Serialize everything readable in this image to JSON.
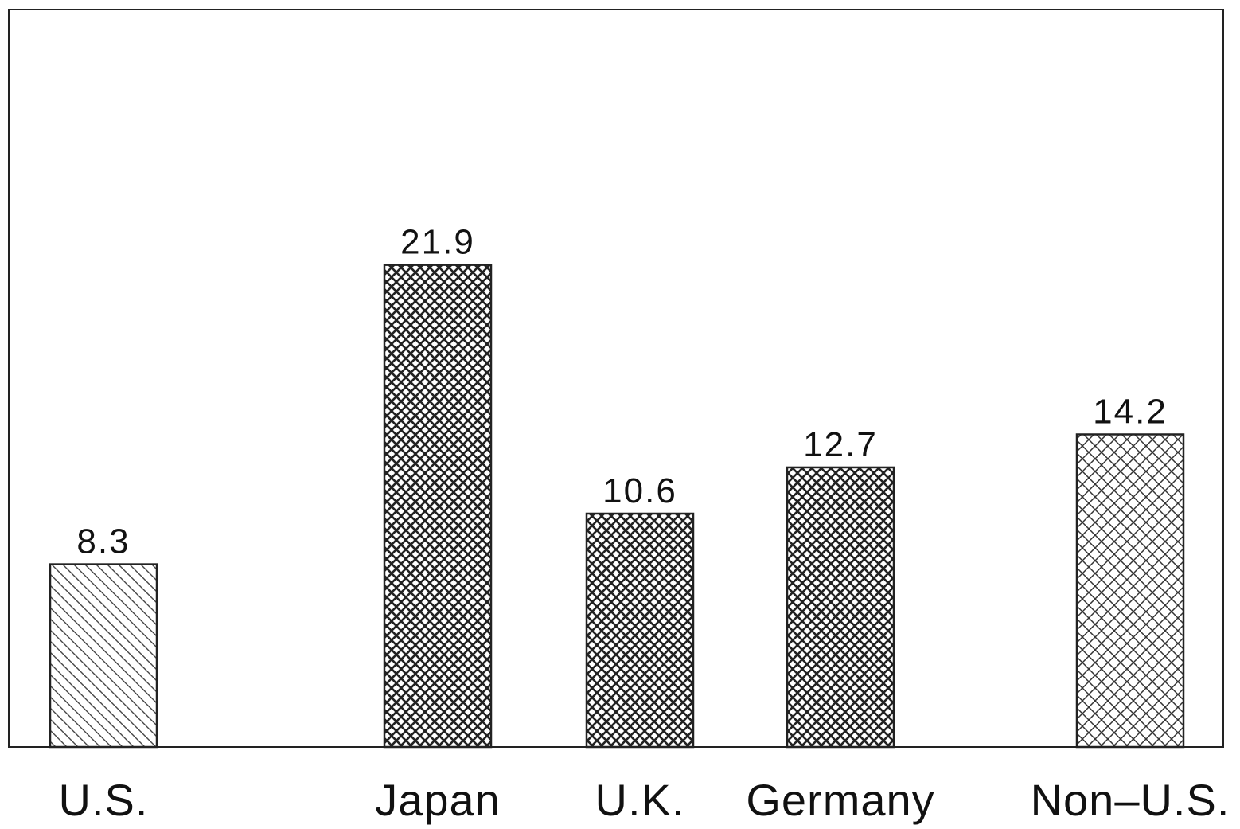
{
  "chart_data": {
    "type": "bar",
    "categories": [
      "U.S.",
      "Japan",
      "U.K.",
      "Germany",
      "Non–U.S."
    ],
    "values": [
      8.3,
      21.9,
      10.6,
      12.7,
      14.2
    ],
    "data_labels": [
      "8.3",
      "21.9",
      "10.6",
      "12.7",
      "14.2"
    ],
    "patterns": [
      "diagonal-hatch",
      "dense-crosshatch",
      "dense-crosshatch",
      "dense-crosshatch",
      "light-crosshatch"
    ],
    "title": "",
    "xlabel": "",
    "ylabel": "",
    "ylim": [
      0,
      33.5
    ],
    "grid": false,
    "legend": "none"
  },
  "colors": {
    "bar_stroke": "#222222",
    "hatch": "#333333",
    "background": "#ffffff"
  }
}
